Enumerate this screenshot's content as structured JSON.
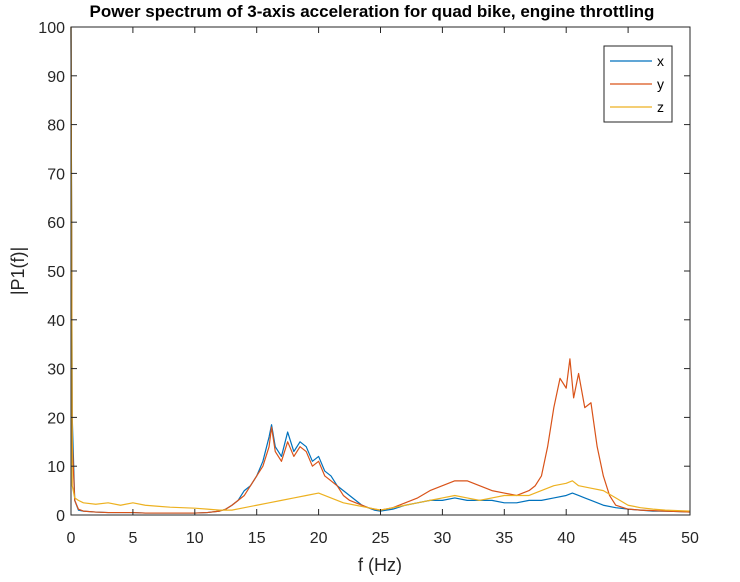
{
  "chart_data": {
    "type": "line",
    "title": "Power spectrum of 3-axis acceleration for quad bike, engine throttling",
    "xlabel": "f (Hz)",
    "ylabel": "|P1(f)|",
    "xlim": [
      0,
      50
    ],
    "ylim": [
      0,
      100
    ],
    "xticks": [
      "0",
      "5",
      "10",
      "15",
      "20",
      "25",
      "30",
      "35",
      "40",
      "45",
      "50"
    ],
    "yticks": [
      "0",
      "10",
      "20",
      "30",
      "40",
      "50",
      "60",
      "70",
      "80",
      "90",
      "100"
    ],
    "grid": false,
    "legend_position": "top-right",
    "series": [
      {
        "name": "x",
        "color": "#0072BD",
        "x": [
          0,
          0.1,
          0.3,
          0.6,
          1,
          2,
          3,
          4,
          5,
          6,
          7,
          8,
          9,
          10,
          11,
          12,
          12.5,
          13,
          13.5,
          14,
          14.5,
          15,
          15.5,
          16,
          16.2,
          16.5,
          17,
          17.5,
          18,
          18.5,
          19,
          19.5,
          20,
          20.5,
          21,
          21.5,
          22,
          22.5,
          23,
          23.5,
          24,
          24.5,
          25,
          26,
          27,
          28,
          29,
          30,
          31,
          32,
          33,
          34,
          35,
          36,
          37,
          38,
          39,
          40,
          40.5,
          41,
          41.5,
          42,
          43,
          44,
          45,
          46,
          47,
          48,
          49,
          50
        ],
        "y": [
          100,
          20,
          3,
          1,
          0.8,
          0.6,
          0.5,
          0.5,
          0.5,
          0.4,
          0.4,
          0.4,
          0.4,
          0.4,
          0.5,
          0.8,
          1.2,
          2,
          3,
          5,
          6,
          8,
          11,
          16,
          18.5,
          14,
          12,
          17,
          13,
          15,
          14,
          11,
          12,
          9,
          8,
          6,
          5,
          4,
          3,
          2,
          1.5,
          1,
          0.8,
          1.2,
          2,
          2.5,
          3,
          3,
          3.5,
          3,
          3,
          3,
          2.5,
          2.5,
          3,
          3,
          3.5,
          4,
          4.5,
          4,
          3.5,
          3,
          2,
          1.5,
          1.2,
          1,
          0.8,
          0.8,
          0.7,
          0.6
        ]
      },
      {
        "name": "y",
        "color": "#D95319",
        "x": [
          0,
          0.1,
          0.3,
          0.6,
          1,
          2,
          3,
          4,
          5,
          6,
          7,
          8,
          9,
          10,
          11,
          12,
          12.5,
          13,
          13.5,
          14,
          14.5,
          15,
          15.5,
          16,
          16.2,
          16.5,
          17,
          17.5,
          18,
          18.5,
          19,
          19.5,
          20,
          20.5,
          21,
          21.5,
          22,
          22.5,
          23,
          23.5,
          24,
          24.5,
          25,
          26,
          27,
          28,
          29,
          30,
          31,
          32,
          33,
          34,
          35,
          36,
          37,
          37.5,
          38,
          38.5,
          39,
          39.5,
          40,
          40.3,
          40.6,
          41,
          41.5,
          42,
          42.5,
          43,
          43.5,
          44,
          45,
          46,
          47,
          48,
          49,
          50
        ],
        "y": [
          100,
          15,
          3,
          1.2,
          0.8,
          0.6,
          0.5,
          0.5,
          0.5,
          0.4,
          0.4,
          0.4,
          0.4,
          0.4,
          0.5,
          0.8,
          1.2,
          2,
          3,
          4,
          6,
          8,
          10,
          14,
          18,
          13,
          11,
          15,
          12,
          14,
          13,
          10,
          11,
          8,
          7,
          6,
          4,
          3,
          2.5,
          2,
          1.5,
          1.2,
          1,
          1.5,
          2.5,
          3.5,
          5,
          6,
          7,
          7,
          6,
          5,
          4.5,
          4,
          5,
          6,
          8,
          14,
          22,
          28,
          26,
          32,
          24,
          29,
          22,
          23,
          14,
          8,
          4,
          2,
          1.2,
          1,
          0.9,
          0.8,
          0.7,
          0.6
        ]
      },
      {
        "name": "z",
        "color": "#EDB120",
        "x": [
          0,
          0.1,
          0.3,
          0.6,
          1,
          2,
          3,
          4,
          5,
          6,
          7,
          8,
          9,
          10,
          11,
          12,
          13,
          14,
          15,
          16,
          17,
          18,
          19,
          20,
          21,
          22,
          23,
          24,
          25,
          26,
          27,
          28,
          29,
          30,
          31,
          32,
          33,
          34,
          35,
          36,
          37,
          38,
          39,
          40,
          40.5,
          41,
          42,
          43,
          44,
          45,
          46,
          47,
          48,
          49,
          50
        ],
        "y": [
          100,
          6,
          3.5,
          3,
          2.5,
          2.2,
          2.5,
          2,
          2.5,
          2,
          1.8,
          1.6,
          1.5,
          1.4,
          1.2,
          1,
          1,
          1.5,
          2,
          2.5,
          3,
          3.5,
          4,
          4.5,
          3.5,
          2.5,
          2,
          1.5,
          1,
          1.5,
          2,
          2.5,
          3,
          3.5,
          4,
          3.5,
          3,
          3.5,
          4,
          4,
          4,
          5,
          6,
          6.5,
          7,
          6,
          5.5,
          5,
          3.5,
          2,
          1.5,
          1.2,
          1,
          0.9,
          0.8
        ]
      }
    ]
  }
}
